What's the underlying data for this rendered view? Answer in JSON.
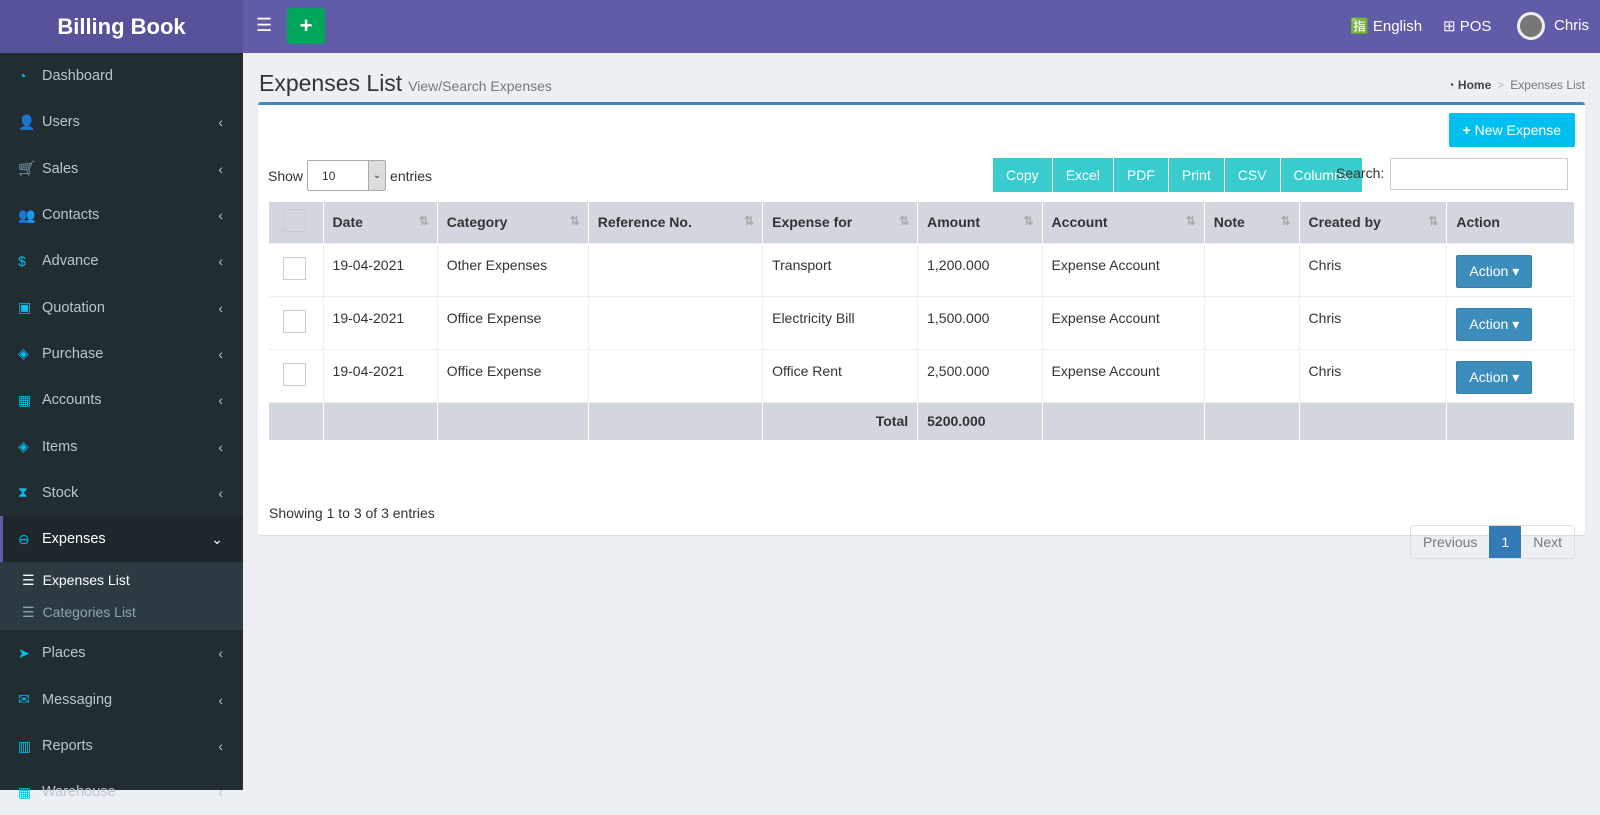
{
  "header": {
    "brand": "Billing Book",
    "language": "English",
    "pos": "POS",
    "user": "Chris"
  },
  "sidebar": {
    "items": [
      {
        "label": "Dashboard",
        "icon": "dashboard-icon",
        "glyph": "◔"
      },
      {
        "label": "Users",
        "icon": "user-plus-icon",
        "glyph": "👤"
      },
      {
        "label": "Sales",
        "icon": "cart-icon",
        "glyph": "🛒"
      },
      {
        "label": "Contacts",
        "icon": "users-icon",
        "glyph": "👥"
      },
      {
        "label": "Advance",
        "icon": "dollar-icon",
        "glyph": "$"
      },
      {
        "label": "Quotation",
        "icon": "calendar-plus-icon",
        "glyph": "▣"
      },
      {
        "label": "Purchase",
        "icon": "cube-icon",
        "glyph": "◈"
      },
      {
        "label": "Accounts",
        "icon": "th-large-icon",
        "glyph": "▦"
      },
      {
        "label": "Items",
        "icon": "cubes-icon",
        "glyph": "◈"
      },
      {
        "label": "Stock",
        "icon": "hourglass-icon",
        "glyph": "⧗"
      },
      {
        "label": "Expenses",
        "icon": "minus-circle-icon",
        "glyph": "⊖"
      },
      {
        "label": "Places",
        "icon": "paper-plane-icon",
        "glyph": "➤"
      },
      {
        "label": "Messaging",
        "icon": "envelope-icon",
        "glyph": "✉"
      },
      {
        "label": "Reports",
        "icon": "bar-chart-icon",
        "glyph": "▥"
      },
      {
        "label": "Warehouse",
        "icon": "building-icon",
        "glyph": "▦"
      }
    ],
    "sub": [
      "Expenses List",
      "Categories List"
    ]
  },
  "page": {
    "title": "Expenses List",
    "subtitle": "View/Search Expenses",
    "breadcrumb_home": "Home",
    "breadcrumb_current": "Expenses List"
  },
  "toolbar": {
    "new": "New Expense",
    "show": "Show",
    "entries_value": "10",
    "entries": "entries",
    "search": "Search:",
    "buttons": [
      "Copy",
      "Excel",
      "PDF",
      "Print",
      "CSV",
      "Columns"
    ]
  },
  "table": {
    "headers": [
      "Date",
      "Category",
      "Reference No.",
      "Expense for",
      "Amount",
      "Account",
      "Note",
      "Created by",
      "Action"
    ],
    "rows": [
      [
        "19-04-2021",
        "Other Expenses",
        "",
        "Transport",
        "1,200.000",
        "Expense Account",
        "",
        "Chris",
        "Action"
      ],
      [
        "19-04-2021",
        "Office Expense",
        "",
        "Electricity Bill",
        "1,500.000",
        "Expense Account",
        "",
        "Chris",
        "Action"
      ],
      [
        "19-04-2021",
        "Office Expense",
        "",
        "Office Rent",
        "2,500.000",
        "Expense Account",
        "",
        "Chris",
        "Action"
      ]
    ],
    "total_label": "Total",
    "total": "5200.000"
  },
  "footer": {
    "info": "Showing 1 to 3 of 3 entries",
    "prev": "Previous",
    "page": "1",
    "next": "Next"
  }
}
